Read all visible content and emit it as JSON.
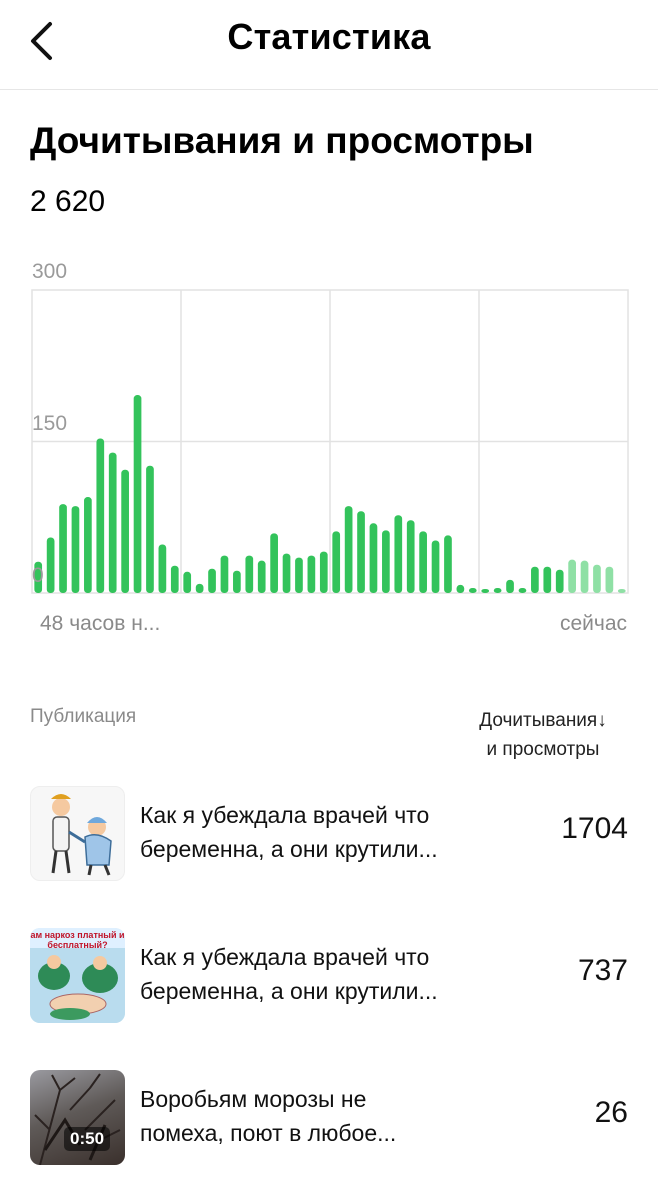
{
  "header": {
    "title": "Статистика",
    "back_icon": "chevron-left-icon"
  },
  "section": {
    "title": "Дочитывания и просмотры",
    "total": "2 620"
  },
  "chart_data": {
    "type": "bar",
    "title": "",
    "xlabel": "",
    "ylabel": "",
    "ylim": [
      0,
      300
    ],
    "yticks": [
      "300",
      "150",
      "0"
    ],
    "x_start_label": "48 часов н...",
    "x_end_label": "сейчас",
    "color": "#33c35b",
    "faded_color": "#8fe0a5",
    "values": [
      31,
      55,
      88,
      86,
      95,
      153,
      139,
      122,
      196,
      126,
      48,
      27,
      21,
      9,
      24,
      37,
      22,
      37,
      32,
      59,
      39,
      35,
      37,
      41,
      61,
      86,
      81,
      69,
      62,
      77,
      72,
      61,
      52,
      57,
      8,
      5,
      4,
      5,
      13,
      5,
      26,
      26,
      23,
      33,
      32,
      28,
      26,
      4
    ],
    "faded_from_index": 43
  },
  "table": {
    "col_publication": "Публикация",
    "col_metric_line1": "Дочитывания↓",
    "col_metric_line2": "и просмотры",
    "rows": [
      {
        "title_line1": "Как я убеждала врачей что",
        "title_line2": "беременна, а они крутили...",
        "value": "1704",
        "thumb_icon": "doctor-cartoon-thumbnail"
      },
      {
        "title_line1": "Как я убеждала врачей что",
        "title_line2": "беременна, а они крутили...",
        "value": "737",
        "thumb_icon": "surgery-cartoon-thumbnail",
        "thumb_caption": "ам наркоз платный и бесплатный?"
      },
      {
        "title_line1": "Воробьям морозы не",
        "title_line2": "помеха, поют в любое...",
        "value": "26",
        "thumb_icon": "video-thumbnail",
        "duration": "0:50"
      }
    ]
  }
}
